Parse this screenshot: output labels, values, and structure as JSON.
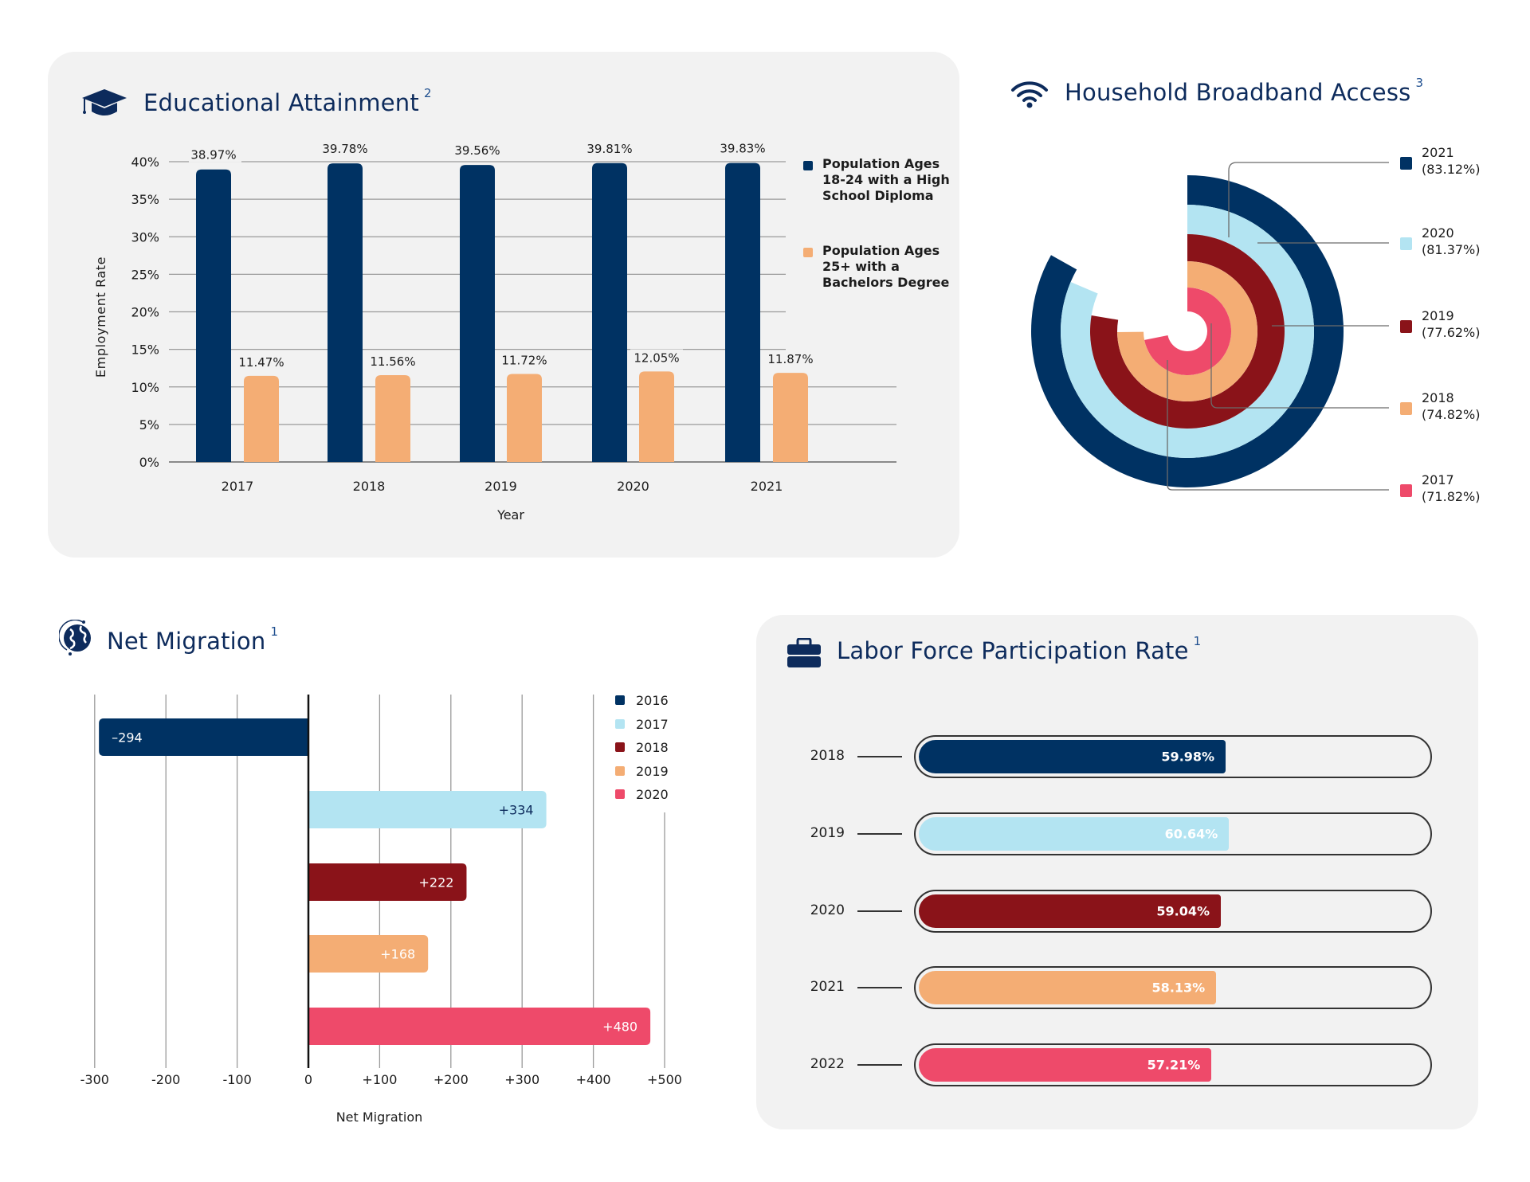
{
  "colors": {
    "navy": "#003263",
    "light_blue": "#b3e4f2",
    "maroon": "#8a1319",
    "orange": "#f4ad74",
    "pink": "#ee4a6a",
    "title": "#0d2b5c"
  },
  "education": {
    "title": "Educational Attainment",
    "footnote": "2",
    "icon": "graduation-cap-icon",
    "chart_data": {
      "type": "bar",
      "title": "Educational Attainment",
      "xlabel": "Year",
      "ylabel": "Employment Rate",
      "categories": [
        "2017",
        "2018",
        "2019",
        "2020",
        "2021"
      ],
      "ylim": [
        0,
        40
      ],
      "yticks": [
        "0%",
        "5%",
        "10%",
        "15%",
        "20%",
        "25%",
        "30%",
        "35%",
        "40%"
      ],
      "grid": true,
      "legend_position": "right",
      "series": [
        {
          "name": "Population Ages 18-24 with a High School Diploma",
          "color": "#003263",
          "values": [
            38.97,
            39.78,
            39.56,
            39.81,
            39.83
          ],
          "labels": [
            "38.97%",
            "39.78%",
            "39.56%",
            "39.81%",
            "39.83%"
          ]
        },
        {
          "name": "Population Ages 25+ with a Bachelors Degree",
          "color": "#f4ad74",
          "values": [
            11.47,
            11.56,
            11.72,
            12.05,
            11.87
          ],
          "labels": [
            "11.47%",
            "11.56%",
            "11.72%",
            "12.05%",
            "11.87%"
          ]
        }
      ]
    }
  },
  "broadband": {
    "title": "Household Broadband Access",
    "footnote": "3",
    "icon": "wifi-icon",
    "chart_data": {
      "type": "radial-bar",
      "title": "Household Broadband Access",
      "max": 100,
      "legend_position": "right",
      "series": [
        {
          "name": "2021",
          "value": 83.12,
          "label": "(83.12%)",
          "color": "#003263"
        },
        {
          "name": "2020",
          "value": 81.37,
          "label": "(81.37%)",
          "color": "#b3e4f2"
        },
        {
          "name": "2019",
          "value": 77.62,
          "label": "(77.62%)",
          "color": "#8a1319"
        },
        {
          "name": "2018",
          "value": 74.82,
          "label": "(74.82%)",
          "color": "#f4ad74"
        },
        {
          "name": "2017",
          "value": 71.82,
          "label": "(71.82%)",
          "color": "#ee4a6a"
        }
      ]
    }
  },
  "migration": {
    "title": "Net Migration",
    "footnote": "1",
    "icon": "globe-icon",
    "chart_data": {
      "type": "bar",
      "orientation": "horizontal",
      "title": "Net Migration",
      "xlabel": "Net Migration",
      "xlim": [
        -300,
        500
      ],
      "xticks": [
        "-300",
        "-200",
        "-100",
        "0",
        "+100",
        "+200",
        "+300",
        "+400",
        "+500"
      ],
      "grid": true,
      "legend_position": "top-right",
      "series": [
        {
          "name": "2016",
          "value": -294,
          "label": "–294",
          "color": "#003263"
        },
        {
          "name": "2017",
          "value": 334,
          "label": "+334",
          "color": "#b3e4f2"
        },
        {
          "name": "2018",
          "value": 222,
          "label": "+222",
          "color": "#8a1319"
        },
        {
          "name": "2019",
          "value": 168,
          "label": "+168",
          "color": "#f4ad74"
        },
        {
          "name": "2020",
          "value": 480,
          "label": "+480",
          "color": "#ee4a6a"
        }
      ]
    }
  },
  "labor": {
    "title": "Labor Force Participation Rate",
    "footnote": "1",
    "icon": "briefcase-icon",
    "chart_data": {
      "type": "bar",
      "orientation": "horizontal",
      "title": "Labor Force Participation Rate",
      "xlim": [
        0,
        100
      ],
      "series": [
        {
          "name": "2018",
          "value": 59.98,
          "label": "59.98%",
          "color": "#003263"
        },
        {
          "name": "2019",
          "value": 60.64,
          "label": "60.64%",
          "color": "#b3e4f2"
        },
        {
          "name": "2020",
          "value": 59.04,
          "label": "59.04%",
          "color": "#8a1319"
        },
        {
          "name": "2021",
          "value": 58.13,
          "label": "58.13%",
          "color": "#f4ad74"
        },
        {
          "name": "2022",
          "value": 57.21,
          "label": "57.21%",
          "color": "#ee4a6a"
        }
      ]
    }
  }
}
